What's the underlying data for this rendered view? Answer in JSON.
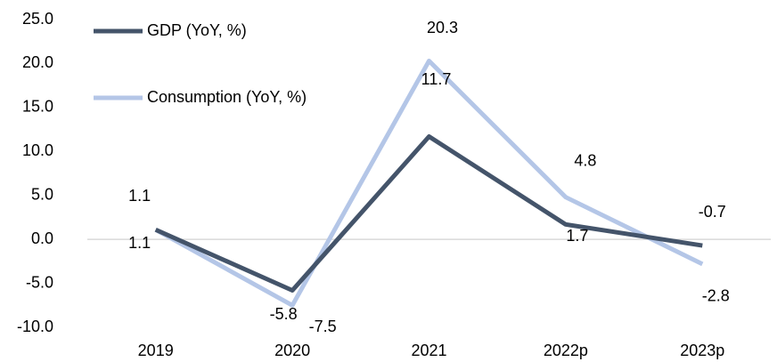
{
  "chart_data": {
    "type": "line",
    "categories": [
      "2019",
      "2020",
      "2021",
      "2022p",
      "2023p"
    ],
    "series": [
      {
        "name": "GDP (YoY, %)",
        "color": "#44546a",
        "values": [
          1.1,
          -5.8,
          11.7,
          1.7,
          -0.7
        ]
      },
      {
        "name": "Consumption (YoY, %)",
        "color": "#b4c6e7",
        "values": [
          1.1,
          -7.5,
          20.3,
          4.8,
          -2.8
        ]
      }
    ],
    "ylim": [
      -10,
      25
    ],
    "yticks": [
      {
        "value": -10,
        "label": "-10.0"
      },
      {
        "value": -5,
        "label": "-5.0"
      },
      {
        "value": 0,
        "label": "0.0"
      },
      {
        "value": 5,
        "label": "5.0"
      },
      {
        "value": 10,
        "label": "10.0"
      },
      {
        "value": 15,
        "label": "15.0"
      },
      {
        "value": 20,
        "label": "20.0"
      },
      {
        "value": 25,
        "label": "25.0"
      }
    ],
    "grid": false,
    "legend": "top-left"
  }
}
